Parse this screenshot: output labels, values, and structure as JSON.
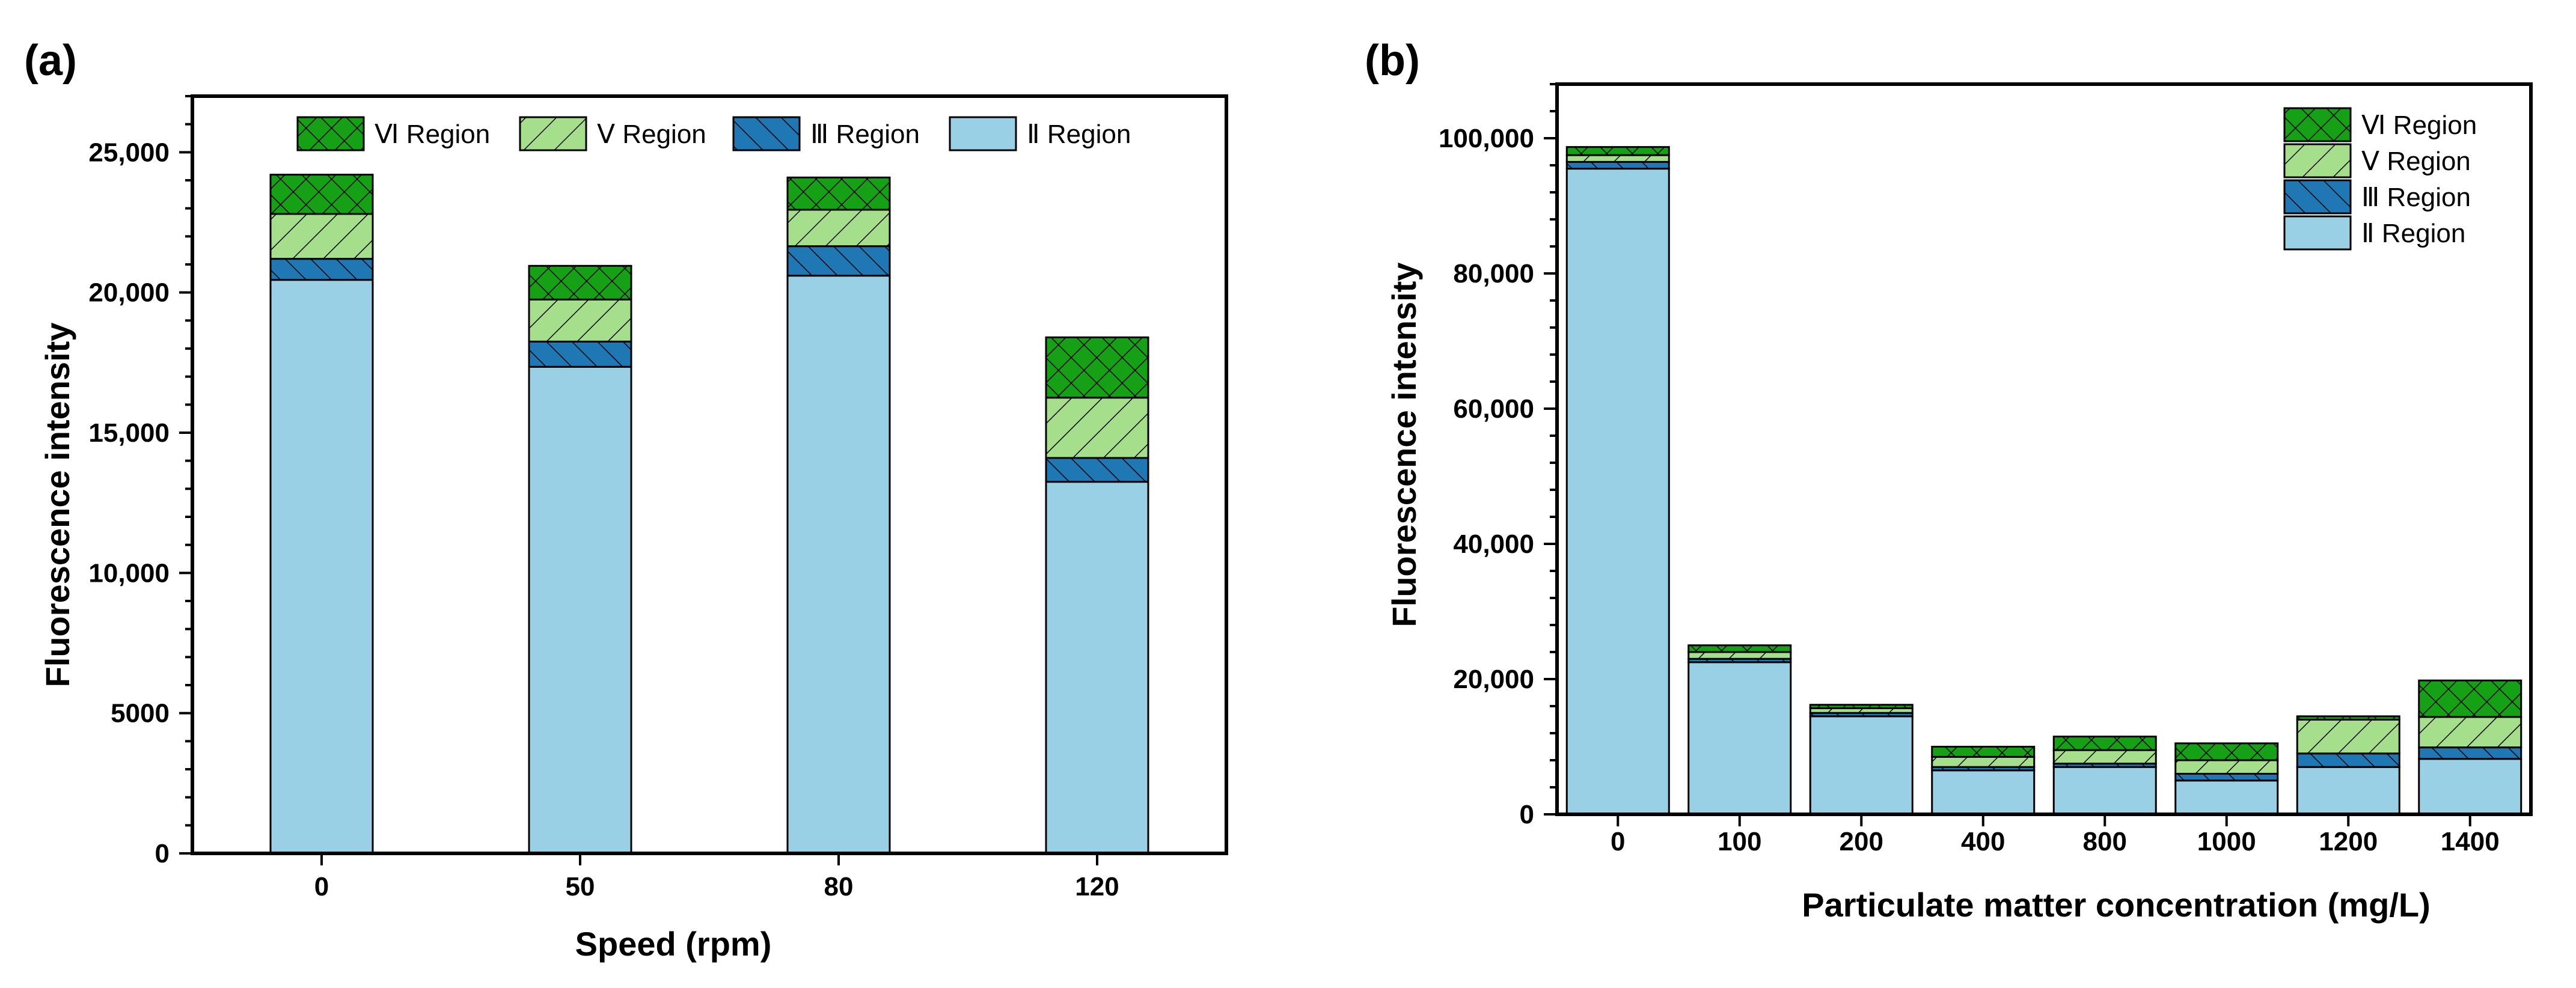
{
  "chart_data": [
    {
      "panel_label": "(a)",
      "type": "bar",
      "stacked": true,
      "title": "",
      "xlabel": "Speed (rpm)",
      "ylabel": "Fluorescence intensity",
      "categories": [
        "0",
        "50",
        "80",
        "120"
      ],
      "ylim": [
        0,
        27000
      ],
      "yticks": [
        {
          "value": 0,
          "label": "0"
        },
        {
          "value": 5000,
          "label": "5000"
        },
        {
          "value": 10000,
          "label": "10,000"
        },
        {
          "value": 15000,
          "label": "15,000"
        },
        {
          "value": 20000,
          "label": "20,000"
        },
        {
          "value": 25000,
          "label": "25,000"
        }
      ],
      "legend_position": "top",
      "series": [
        {
          "name": "Ⅱ Region",
          "values": [
            20450,
            17350,
            20600,
            13250
          ]
        },
        {
          "name": "Ⅲ Region",
          "values": [
            750,
            900,
            1050,
            850
          ]
        },
        {
          "name": "Ⅴ Region",
          "values": [
            1600,
            1500,
            1300,
            2150
          ]
        },
        {
          "name": "Ⅵ Region",
          "values": [
            1400,
            1200,
            1150,
            2150
          ]
        }
      ],
      "legend_order": [
        "Ⅵ Region",
        "Ⅴ Region",
        "Ⅲ Region",
        "Ⅱ Region"
      ]
    },
    {
      "panel_label": "(b)",
      "type": "bar",
      "stacked": true,
      "title": "",
      "xlabel": "Particulate matter concentration (mg/L)",
      "ylabel": "Fluorescence intensity",
      "categories": [
        "0",
        "100",
        "200",
        "400",
        "800",
        "1000",
        "1200",
        "1400"
      ],
      "ylim": [
        0,
        108000
      ],
      "yticks": [
        {
          "value": 0,
          "label": "0"
        },
        {
          "value": 20000,
          "label": "20,000"
        },
        {
          "value": 40000,
          "label": "40,000"
        },
        {
          "value": 60000,
          "label": "60,000"
        },
        {
          "value": 80000,
          "label": "80,000"
        },
        {
          "value": 100000,
          "label": "100,000"
        }
      ],
      "legend_position": "top-right",
      "series": [
        {
          "name": "Ⅱ Region",
          "values": [
            95500,
            22500,
            14500,
            6500,
            7000,
            5000,
            7000,
            8200
          ]
        },
        {
          "name": "Ⅲ Region",
          "values": [
            1000,
            500,
            500,
            500,
            500,
            1000,
            2000,
            1700
          ]
        },
        {
          "name": "Ⅴ Region",
          "values": [
            1000,
            1000,
            700,
            1500,
            2000,
            2000,
            5000,
            4500
          ]
        },
        {
          "name": "Ⅵ Region",
          "values": [
            1200,
            1000,
            500,
            1500,
            2000,
            2500,
            500,
            5400
          ]
        }
      ],
      "legend_order": [
        "Ⅵ Region",
        "Ⅴ Region",
        "Ⅲ Region",
        "Ⅱ Region"
      ]
    }
  ],
  "colors": {
    "Ⅱ Region": "#99d0e6",
    "Ⅲ Region": "#1f77b4",
    "Ⅴ Region": "#a6df8c",
    "Ⅵ Region": "#16a016",
    "frame": "#000000"
  }
}
